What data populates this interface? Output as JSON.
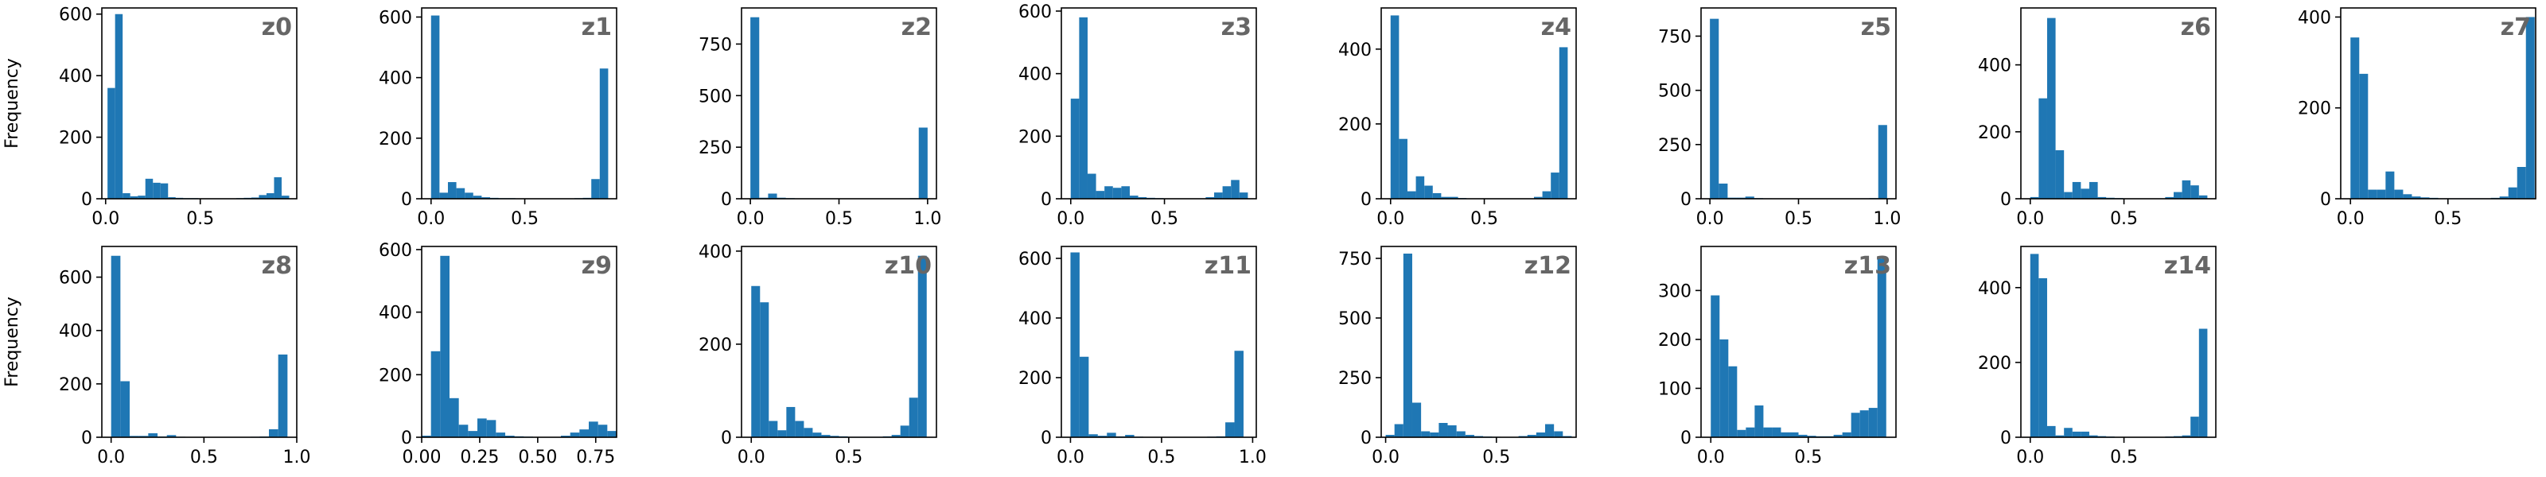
{
  "figure": {
    "ylabel": "Frequency",
    "bar_color": "#1f77b4",
    "label_color": "#666666"
  },
  "chart_data": [
    {
      "type": "bar",
      "title": "z0",
      "ylabel": "Frequency",
      "bin_starts": [
        0.01,
        0.05,
        0.09,
        0.13,
        0.17,
        0.21,
        0.25,
        0.29,
        0.33,
        0.37,
        0.41,
        0.45,
        0.49,
        0.53,
        0.57,
        0.61,
        0.65,
        0.69,
        0.73,
        0.77,
        0.81,
        0.85,
        0.89,
        0.93
      ],
      "bin_width": 0.04,
      "values": [
        360,
        600,
        18,
        8,
        10,
        65,
        52,
        50,
        5,
        3,
        2,
        2,
        1,
        1,
        1,
        1,
        1,
        2,
        3,
        4,
        12,
        18,
        70,
        10
      ],
      "xlim": [
        -0.02,
        1.01
      ],
      "ylim": [
        0,
        620
      ],
      "xticks": [
        0,
        0.5
      ],
      "xtick_labels": [
        "0.0",
        "0.5"
      ],
      "yticks": [
        0,
        200,
        400,
        600
      ]
    },
    {
      "type": "bar",
      "title": "z1",
      "ylabel": "",
      "bin_starts": [
        0.0,
        0.045,
        0.09,
        0.135,
        0.18,
        0.225,
        0.27,
        0.315,
        0.36,
        0.405,
        0.45,
        0.495,
        0.54,
        0.585,
        0.63,
        0.675,
        0.72,
        0.765,
        0.81,
        0.855,
        0.9
      ],
      "bin_width": 0.045,
      "values": [
        605,
        20,
        55,
        35,
        20,
        10,
        5,
        3,
        2,
        2,
        1,
        1,
        1,
        1,
        1,
        1,
        1,
        2,
        3,
        65,
        430
      ],
      "xlim": [
        -0.05,
        0.99
      ],
      "ylim": [
        0,
        630
      ],
      "xticks": [
        0,
        0.5
      ],
      "xtick_labels": [
        "0.0",
        "0.5"
      ],
      "yticks": [
        0,
        200,
        400,
        600
      ]
    },
    {
      "type": "bar",
      "title": "z2",
      "ylabel": "",
      "bin_starts": [
        0.0,
        0.05,
        0.1,
        0.15,
        0.2,
        0.25,
        0.3,
        0.35,
        0.4,
        0.45,
        0.5,
        0.55,
        0.6,
        0.65,
        0.7,
        0.75,
        0.8,
        0.85,
        0.9,
        0.95
      ],
      "bin_width": 0.05,
      "values": [
        880,
        5,
        25,
        5,
        3,
        2,
        2,
        1,
        1,
        1,
        1,
        1,
        1,
        1,
        1,
        1,
        1,
        2,
        3,
        345
      ],
      "xlim": [
        -0.05,
        1.05
      ],
      "ylim": [
        0,
        925
      ],
      "xticks": [
        0,
        0.5,
        1.0
      ],
      "xtick_labels": [
        "0.0",
        "0.5",
        "1.0"
      ],
      "yticks": [
        0,
        250,
        500,
        750
      ]
    },
    {
      "type": "bar",
      "title": "z3",
      "ylabel": "",
      "bin_starts": [
        0.0,
        0.045,
        0.09,
        0.135,
        0.18,
        0.225,
        0.27,
        0.315,
        0.36,
        0.405,
        0.45,
        0.495,
        0.54,
        0.585,
        0.63,
        0.675,
        0.72,
        0.765,
        0.81,
        0.855,
        0.9
      ],
      "bin_width": 0.045,
      "values": [
        320,
        580,
        80,
        25,
        40,
        35,
        40,
        10,
        5,
        3,
        2,
        1,
        1,
        1,
        1,
        1,
        5,
        20,
        40,
        60,
        20
      ],
      "xlim": [
        -0.05,
        0.99
      ],
      "ylim": [
        0,
        610
      ],
      "xticks": [
        0,
        0.5
      ],
      "xtick_labels": [
        "0.0",
        "0.5"
      ],
      "yticks": [
        0,
        200,
        400,
        600
      ]
    },
    {
      "type": "bar",
      "title": "z4",
      "ylabel": "",
      "bin_starts": [
        0.0,
        0.045,
        0.09,
        0.135,
        0.18,
        0.225,
        0.27,
        0.315,
        0.36,
        0.405,
        0.45,
        0.495,
        0.54,
        0.585,
        0.63,
        0.675,
        0.72,
        0.765,
        0.81,
        0.855,
        0.9
      ],
      "bin_width": 0.045,
      "values": [
        490,
        160,
        20,
        60,
        35,
        15,
        5,
        5,
        2,
        1,
        1,
        1,
        1,
        1,
        1,
        1,
        1,
        5,
        20,
        70,
        405
      ],
      "xlim": [
        -0.05,
        0.99
      ],
      "ylim": [
        0,
        510
      ],
      "xticks": [
        0,
        0.5
      ],
      "xtick_labels": [
        "0.0",
        "0.5"
      ],
      "yticks": [
        0,
        200,
        400
      ]
    },
    {
      "type": "bar",
      "title": "z5",
      "ylabel": "",
      "bin_starts": [
        0.0,
        0.05,
        0.1,
        0.15,
        0.2,
        0.25,
        0.3,
        0.35,
        0.4,
        0.45,
        0.5,
        0.55,
        0.6,
        0.65,
        0.7,
        0.75,
        0.8,
        0.85,
        0.9,
        0.95
      ],
      "bin_width": 0.05,
      "values": [
        830,
        70,
        5,
        5,
        10,
        3,
        2,
        1,
        1,
        1,
        1,
        1,
        1,
        1,
        1,
        1,
        1,
        2,
        3,
        340
      ],
      "xlim": [
        -0.05,
        1.05
      ],
      "ylim": [
        0,
        880
      ],
      "xticks": [
        0,
        0.5,
        1.0
      ],
      "xtick_labels": [
        "0.0",
        "0.5",
        "1.0"
      ],
      "yticks": [
        0,
        250,
        500,
        750
      ]
    },
    {
      "type": "bar",
      "title": "z6",
      "ylabel": "",
      "bin_starts": [
        0.0,
        0.045,
        0.09,
        0.135,
        0.18,
        0.225,
        0.27,
        0.315,
        0.36,
        0.405,
        0.45,
        0.495,
        0.54,
        0.585,
        0.63,
        0.675,
        0.72,
        0.765,
        0.81,
        0.855,
        0.9
      ],
      "bin_width": 0.045,
      "values": [
        5,
        300,
        540,
        145,
        20,
        50,
        30,
        50,
        5,
        3,
        2,
        1,
        1,
        1,
        1,
        1,
        5,
        20,
        55,
        40,
        10
      ],
      "xlim": [
        -0.05,
        0.99
      ],
      "ylim": [
        0,
        570
      ],
      "xticks": [
        0,
        0.5
      ],
      "xtick_labels": [
        "0.0",
        "0.5"
      ],
      "yticks": [
        0,
        200,
        400
      ]
    },
    {
      "type": "bar",
      "title": "z7",
      "ylabel": "",
      "bin_starts": [
        0.0,
        0.045,
        0.09,
        0.135,
        0.18,
        0.225,
        0.27,
        0.315,
        0.36,
        0.405,
        0.45,
        0.495,
        0.54,
        0.585,
        0.63,
        0.675,
        0.72,
        0.765,
        0.81,
        0.855,
        0.9
      ],
      "bin_width": 0.045,
      "values": [
        355,
        275,
        20,
        20,
        60,
        20,
        10,
        5,
        3,
        2,
        1,
        1,
        1,
        1,
        1,
        1,
        2,
        5,
        25,
        70,
        400
      ],
      "xlim": [
        -0.05,
        0.95
      ],
      "ylim": [
        0,
        420
      ],
      "xticks": [
        0,
        0.5
      ],
      "xtick_labels": [
        "0.0",
        "0.5"
      ],
      "yticks": [
        0,
        200,
        400
      ]
    },
    {
      "type": "bar",
      "title": "z8",
      "ylabel": "Frequency",
      "bin_starts": [
        0.0,
        0.05,
        0.1,
        0.15,
        0.2,
        0.25,
        0.3,
        0.35,
        0.4,
        0.45,
        0.5,
        0.55,
        0.6,
        0.65,
        0.7,
        0.75,
        0.8,
        0.85,
        0.9
      ],
      "bin_width": 0.05,
      "values": [
        680,
        210,
        5,
        5,
        15,
        3,
        8,
        2,
        1,
        1,
        1,
        1,
        1,
        1,
        1,
        2,
        3,
        30,
        310
      ],
      "xlim": [
        -0.05,
        1.0
      ],
      "ylim": [
        0,
        715
      ],
      "xticks": [
        0,
        0.5,
        1.0
      ],
      "xtick_labels": [
        "0.0",
        "0.5",
        "1.0"
      ],
      "yticks": [
        0,
        200,
        400,
        600
      ]
    },
    {
      "type": "bar",
      "title": "z9",
      "ylabel": "",
      "bin_starts": [
        0.0,
        0.04,
        0.08,
        0.12,
        0.16,
        0.2,
        0.24,
        0.28,
        0.32,
        0.36,
        0.4,
        0.44,
        0.48,
        0.52,
        0.56,
        0.6,
        0.64,
        0.68,
        0.72,
        0.76,
        0.8
      ],
      "bin_width": 0.04,
      "values": [
        5,
        275,
        580,
        125,
        40,
        20,
        60,
        55,
        15,
        5,
        3,
        2,
        1,
        1,
        1,
        5,
        15,
        25,
        50,
        40,
        20
      ],
      "xlim": [
        0.0,
        0.84
      ],
      "ylim": [
        0,
        610
      ],
      "xticks": [
        0,
        0.25,
        0.5,
        0.75
      ],
      "xtick_labels": [
        "0.00",
        "0.25",
        "0.50",
        "0.75"
      ],
      "yticks": [
        0,
        200,
        400,
        600
      ]
    },
    {
      "type": "bar",
      "title": "z10",
      "ylabel": "",
      "bin_starts": [
        0.0,
        0.045,
        0.09,
        0.135,
        0.18,
        0.225,
        0.27,
        0.315,
        0.36,
        0.405,
        0.45,
        0.495,
        0.54,
        0.585,
        0.63,
        0.675,
        0.72,
        0.765,
        0.81,
        0.855
      ],
      "bin_width": 0.045,
      "values": [
        325,
        290,
        35,
        15,
        65,
        35,
        20,
        10,
        5,
        3,
        2,
        1,
        1,
        1,
        1,
        2,
        5,
        25,
        85,
        390
      ],
      "xlim": [
        -0.05,
        0.95
      ],
      "ylim": [
        0,
        410
      ],
      "xticks": [
        0,
        0.5
      ],
      "xtick_labels": [
        "0.0",
        "0.5"
      ],
      "yticks": [
        0,
        200,
        400
      ]
    },
    {
      "type": "bar",
      "title": "z11",
      "ylabel": "",
      "bin_starts": [
        0.0,
        0.05,
        0.1,
        0.15,
        0.2,
        0.25,
        0.3,
        0.35,
        0.4,
        0.45,
        0.5,
        0.55,
        0.6,
        0.65,
        0.7,
        0.75,
        0.8,
        0.85,
        0.9
      ],
      "bin_width": 0.05,
      "values": [
        620,
        270,
        10,
        5,
        15,
        3,
        8,
        2,
        1,
        1,
        1,
        1,
        1,
        1,
        1,
        2,
        3,
        50,
        290
      ],
      "xlim": [
        -0.05,
        1.02
      ],
      "ylim": [
        0,
        640
      ],
      "xticks": [
        0,
        0.5,
        1.0
      ],
      "xtick_labels": [
        "0.0",
        "0.5",
        "1.0"
      ],
      "yticks": [
        0,
        200,
        400,
        600
      ]
    },
    {
      "type": "bar",
      "title": "z12",
      "ylabel": "",
      "bin_starts": [
        0.0,
        0.04,
        0.08,
        0.12,
        0.16,
        0.2,
        0.24,
        0.28,
        0.32,
        0.36,
        0.4,
        0.44,
        0.48,
        0.52,
        0.56,
        0.6,
        0.64,
        0.68,
        0.72,
        0.76,
        0.8
      ],
      "bin_width": 0.04,
      "values": [
        10,
        55,
        770,
        145,
        25,
        20,
        60,
        50,
        25,
        10,
        5,
        3,
        2,
        1,
        1,
        5,
        10,
        20,
        55,
        25,
        5
      ],
      "xlim": [
        -0.02,
        0.86
      ],
      "ylim": [
        0,
        800
      ],
      "xticks": [
        0,
        0.5
      ],
      "xtick_labels": [
        "0.0",
        "0.5"
      ],
      "yticks": [
        0,
        250,
        500,
        750
      ]
    },
    {
      "type": "bar",
      "title": "z13",
      "ylabel": "",
      "bin_starts": [
        0.0,
        0.045,
        0.09,
        0.135,
        0.18,
        0.225,
        0.27,
        0.315,
        0.36,
        0.405,
        0.45,
        0.495,
        0.54,
        0.585,
        0.63,
        0.675,
        0.72,
        0.765,
        0.81,
        0.855
      ],
      "bin_width": 0.045,
      "values": [
        290,
        200,
        145,
        15,
        20,
        65,
        20,
        20,
        10,
        10,
        5,
        3,
        2,
        2,
        5,
        10,
        50,
        55,
        60,
        365
      ],
      "xlim": [
        -0.05,
        0.95
      ],
      "ylim": [
        0,
        390
      ],
      "xticks": [
        0,
        0.5
      ],
      "xtick_labels": [
        "0.0",
        "0.5"
      ],
      "yticks": [
        0,
        100,
        200,
        300
      ]
    },
    {
      "type": "bar",
      "title": "z14",
      "ylabel": "",
      "bin_starts": [
        0.0,
        0.045,
        0.09,
        0.135,
        0.18,
        0.225,
        0.27,
        0.315,
        0.36,
        0.405,
        0.45,
        0.495,
        0.54,
        0.585,
        0.63,
        0.675,
        0.72,
        0.765,
        0.81,
        0.855,
        0.9
      ],
      "bin_width": 0.045,
      "values": [
        490,
        425,
        30,
        5,
        25,
        15,
        15,
        5,
        3,
        2,
        1,
        1,
        1,
        1,
        1,
        1,
        2,
        3,
        5,
        55,
        290
      ],
      "xlim": [
        -0.05,
        0.99
      ],
      "ylim": [
        0,
        510
      ],
      "xticks": [
        0,
        0.5
      ],
      "xtick_labels": [
        "0.0",
        "0.5"
      ],
      "yticks": [
        0,
        200,
        400
      ]
    }
  ]
}
